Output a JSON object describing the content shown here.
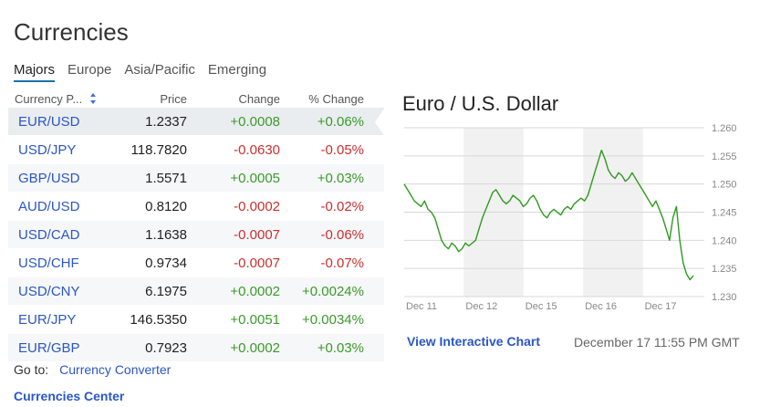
{
  "page": {
    "title": "Currencies",
    "tabs": [
      {
        "label": "Majors",
        "active": true
      },
      {
        "label": "Europe",
        "active": false
      },
      {
        "label": "Asia/Pacific",
        "active": false
      },
      {
        "label": "Emerging",
        "active": false
      }
    ]
  },
  "table": {
    "headers": {
      "pair": "Currency P...",
      "price": "Price",
      "change": "Change",
      "pct_change": "% Change"
    },
    "rows": [
      {
        "pair": "EUR/USD",
        "price": "1.2337",
        "change": "+0.0008",
        "pct": "+0.06%",
        "direction": "up"
      },
      {
        "pair": "USD/JPY",
        "price": "118.7820",
        "change": "-0.0630",
        "pct": "-0.05%",
        "direction": "down"
      },
      {
        "pair": "GBP/USD",
        "price": "1.5571",
        "change": "+0.0005",
        "pct": "+0.03%",
        "direction": "up"
      },
      {
        "pair": "AUD/USD",
        "price": "0.8120",
        "change": "-0.0002",
        "pct": "-0.02%",
        "direction": "down"
      },
      {
        "pair": "USD/CAD",
        "price": "1.1638",
        "change": "-0.0007",
        "pct": "-0.06%",
        "direction": "down"
      },
      {
        "pair": "USD/CHF",
        "price": "0.9734",
        "change": "-0.0007",
        "pct": "-0.07%",
        "direction": "down"
      },
      {
        "pair": "USD/CNY",
        "price": "6.1975",
        "change": "+0.0002",
        "pct": "+0.0024%",
        "direction": "up"
      },
      {
        "pair": "EUR/JPY",
        "price": "146.5350",
        "change": "+0.0051",
        "pct": "+0.0034%",
        "direction": "up"
      },
      {
        "pair": "EUR/GBP",
        "price": "0.7923",
        "change": "+0.0002",
        "pct": "+0.03%",
        "direction": "up"
      }
    ]
  },
  "footer": {
    "goto_label": "Go to:",
    "converter_link": "Currency Converter",
    "center_link": "Currencies Center"
  },
  "chart_panel": {
    "title": "Euro / U.S. Dollar",
    "view_link": "View Interactive Chart",
    "timestamp": "December 17 11:55 PM GMT"
  },
  "colors": {
    "positive": "#3a9a2a",
    "negative": "#c83030",
    "link": "#2a56c6",
    "line": "#2e9a1e"
  },
  "chart_data": {
    "type": "line",
    "title": "Euro / U.S. Dollar",
    "x_tick_labels": [
      "Dec 11",
      "Dec 12",
      "Dec 15",
      "Dec 16",
      "Dec 17"
    ],
    "y_ticks": [
      1.23,
      1.235,
      1.24,
      1.245,
      1.25,
      1.255,
      1.26
    ],
    "y_tick_labels": [
      "1.230",
      "1.235",
      "1.240",
      "1.245",
      "1.250",
      "1.255",
      "1.260"
    ],
    "ylim": [
      1.23,
      1.26
    ],
    "y_axis_position": "right",
    "grid": true,
    "series": [
      {
        "values": [
          1.25,
          1.249,
          1.248,
          1.247,
          1.2465,
          1.246,
          1.247,
          1.2455,
          1.245,
          1.244,
          1.242,
          1.24,
          1.239,
          1.2385,
          1.2395,
          1.239,
          1.238,
          1.2385,
          1.2395,
          1.239,
          1.2395,
          1.24,
          1.242,
          1.244,
          1.2455,
          1.247,
          1.2485,
          1.249,
          1.248,
          1.247,
          1.2465,
          1.247,
          1.248,
          1.2475,
          1.247,
          1.246,
          1.2465,
          1.2475,
          1.248,
          1.247,
          1.2455,
          1.2445,
          1.244,
          1.245,
          1.2455,
          1.245,
          1.2445,
          1.2455,
          1.246,
          1.2455,
          1.2465,
          1.247,
          1.2475,
          1.247,
          1.248,
          1.25,
          1.252,
          1.254,
          1.256,
          1.2545,
          1.2525,
          1.2515,
          1.251,
          1.252,
          1.2515,
          1.2505,
          1.251,
          1.252,
          1.251,
          1.25,
          1.249,
          1.248,
          1.247,
          1.246,
          1.247,
          1.2455,
          1.244,
          1.242,
          1.24,
          1.244,
          1.246,
          1.24,
          1.236,
          1.234,
          1.233,
          1.2337
        ]
      }
    ]
  }
}
